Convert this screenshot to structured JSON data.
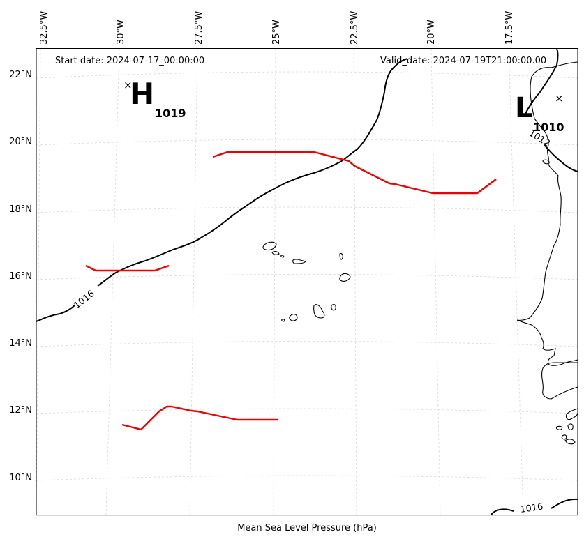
{
  "header": {
    "start_date": "Start date: 2024-07-17_00:00:00",
    "valid_date": "Valid_date: 2024-07-19T21:00:00.00"
  },
  "footer": {
    "caption": "Mean Sea Level Pressure (hPa)"
  },
  "axes": {
    "longitude_labels": [
      "32.5°W",
      "30°W",
      "27.5°W",
      "25°W",
      "22.5°W",
      "20°W",
      "17.5°W"
    ],
    "latitude_labels": [
      "22°N",
      "20°N",
      "18°N",
      "16°N",
      "14°N",
      "12°N",
      "10°N"
    ]
  },
  "pressure_centers": [
    {
      "letter": "H",
      "value": "1019"
    },
    {
      "letter": "L",
      "value": "1010"
    }
  ],
  "isobar_labels": [
    "1016",
    "1012",
    "1016"
  ],
  "colors": {
    "isobar": "#000000",
    "front": "#ee0000",
    "grid": "#d8d8d8"
  }
}
